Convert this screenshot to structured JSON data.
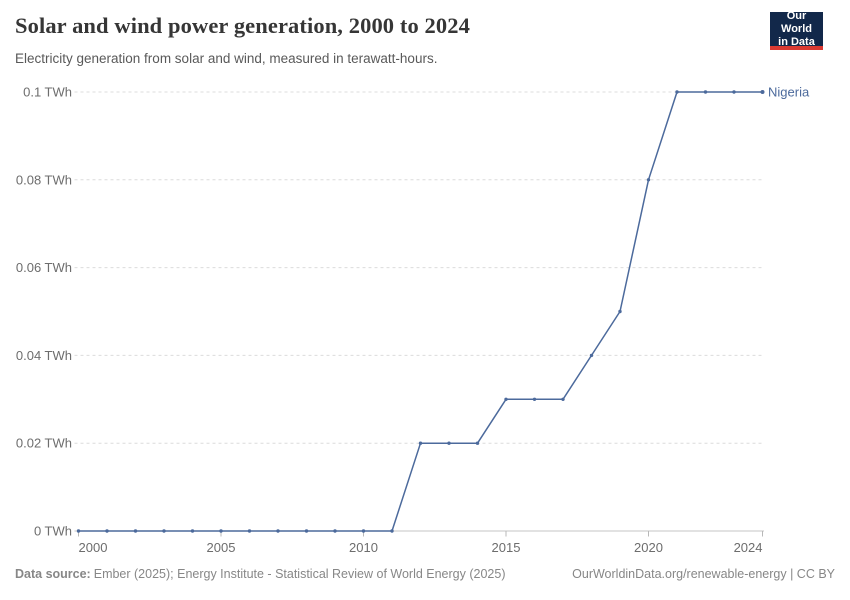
{
  "header": {
    "title": "Solar and wind power generation, 2000 to 2024",
    "subtitle": "Electricity generation from solar and wind, measured in terawatt-hours."
  },
  "logo": {
    "line1": "Our World",
    "line2": "in Data",
    "bg_color": "#12284a",
    "accent_color": "#da3a32"
  },
  "chart_data": {
    "type": "line",
    "title": "Solar and wind power generation, 2000 to 2024",
    "subtitle": "Electricity generation from solar and wind, measured in terawatt-hours.",
    "x": [
      2000,
      2001,
      2002,
      2003,
      2004,
      2005,
      2006,
      2007,
      2008,
      2009,
      2010,
      2011,
      2012,
      2013,
      2014,
      2015,
      2016,
      2017,
      2018,
      2019,
      2020,
      2021,
      2022,
      2023,
      2024
    ],
    "series": [
      {
        "name": "Nigeria",
        "color": "#4c6a9c",
        "values": [
          0,
          0,
          0,
          0,
          0,
          0,
          0,
          0,
          0,
          0,
          0,
          0,
          0.02,
          0.02,
          0.02,
          0.03,
          0.03,
          0.03,
          0.04,
          0.05,
          0.08,
          0.1,
          0.1,
          0.1,
          0.1
        ]
      }
    ],
    "xlim": [
      2000,
      2024
    ],
    "ylim": [
      0,
      0.1
    ],
    "x_ticks": [
      2000,
      2005,
      2010,
      2015,
      2020,
      2024
    ],
    "y_ticks": [
      0,
      0.02,
      0.04,
      0.06,
      0.08,
      0.1
    ],
    "y_tick_labels": [
      "0 TWh",
      "0.02 TWh",
      "0.04 TWh",
      "0.06 TWh",
      "0.08 TWh",
      "0.1 TWh"
    ],
    "xlabel": "",
    "ylabel": "",
    "grid": "horizontal-dashed",
    "legend_position": "end-of-line-label",
    "colors": {
      "gridline": "#dcdcdc",
      "axis_line": "#c4c4c4",
      "tick_mark": "#b8b8b8",
      "tick_text": "#6d6d6d"
    }
  },
  "footer": {
    "source_label": "Data source:",
    "source_text": "Ember (2025); Energy Institute - Statistical Review of World Energy (2025)",
    "link_text": "OurWorldinData.org/renewable-energy | CC BY"
  }
}
